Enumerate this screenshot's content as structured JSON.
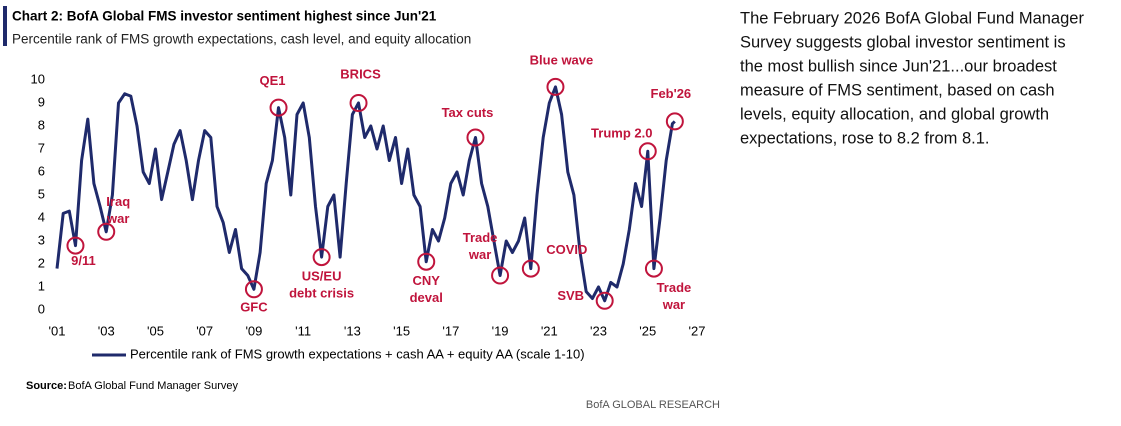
{
  "chart_data": {
    "type": "line",
    "title": "Chart 2: BofA Global FMS investor sentiment highest since Jun'21",
    "subtitle": "Percentile rank of FMS growth expectations, cash level, and equity allocation",
    "source_label": "Source:",
    "source": "BofA Global Fund Manager Survey",
    "brand": "BofA GLOBAL RESEARCH",
    "xlim": [
      2001,
      2027
    ],
    "ylim": [
      0,
      10
    ],
    "yticks": [
      0,
      1,
      2,
      3,
      4,
      5,
      6,
      7,
      8,
      9,
      10
    ],
    "xticks": [
      {
        "value": 2001,
        "label": "'01"
      },
      {
        "value": 2003,
        "label": "'03"
      },
      {
        "value": 2005,
        "label": "'05"
      },
      {
        "value": 2007,
        "label": "'07"
      },
      {
        "value": 2009,
        "label": "'09"
      },
      {
        "value": 2011,
        "label": "'11"
      },
      {
        "value": 2013,
        "label": "'13"
      },
      {
        "value": 2015,
        "label": "'15"
      },
      {
        "value": 2017,
        "label": "'17"
      },
      {
        "value": 2019,
        "label": "'19"
      },
      {
        "value": 2021,
        "label": "'21"
      },
      {
        "value": 2023,
        "label": "'23"
      },
      {
        "value": 2025,
        "label": "'25"
      },
      {
        "value": 2027,
        "label": "'27"
      }
    ],
    "grid": false,
    "legend": "bottom",
    "x": [
      2001.0,
      2001.25,
      2001.5,
      2001.75,
      2002.0,
      2002.25,
      2002.5,
      2002.75,
      2003.0,
      2003.25,
      2003.5,
      2003.75,
      2004.0,
      2004.25,
      2004.5,
      2004.75,
      2005.0,
      2005.25,
      2005.5,
      2005.75,
      2006.0,
      2006.25,
      2006.5,
      2006.75,
      2007.0,
      2007.25,
      2007.5,
      2007.75,
      2008.0,
      2008.25,
      2008.5,
      2008.75,
      2009.0,
      2009.25,
      2009.5,
      2009.75,
      2010.0,
      2010.25,
      2010.5,
      2010.75,
      2011.0,
      2011.25,
      2011.5,
      2011.75,
      2012.0,
      2012.25,
      2012.5,
      2012.75,
      2013.0,
      2013.25,
      2013.5,
      2013.75,
      2014.0,
      2014.25,
      2014.5,
      2014.75,
      2015.0,
      2015.25,
      2015.5,
      2015.75,
      2016.0,
      2016.25,
      2016.5,
      2016.75,
      2017.0,
      2017.25,
      2017.5,
      2017.75,
      2018.0,
      2018.25,
      2018.5,
      2018.75,
      2019.0,
      2019.25,
      2019.5,
      2019.75,
      2020.0,
      2020.25,
      2020.5,
      2020.75,
      2021.0,
      2021.25,
      2021.5,
      2021.75,
      2022.0,
      2022.25,
      2022.5,
      2022.75,
      2023.0,
      2023.25,
      2023.5,
      2023.75,
      2024.0,
      2024.25,
      2024.5,
      2024.75,
      2025.0,
      2025.25,
      2025.5,
      2025.75,
      2026.0,
      2026.1
    ],
    "series": [
      {
        "name": "Percentile rank of FMS growth expectations + cash AA + equity AA (scale 1-10)",
        "color": "#1f2a6b",
        "values": [
          1.8,
          4.2,
          4.3,
          2.8,
          6.5,
          8.3,
          5.5,
          4.5,
          3.4,
          5.0,
          9.0,
          9.4,
          9.3,
          8.0,
          6.0,
          5.5,
          7.0,
          4.8,
          6.0,
          7.2,
          7.8,
          6.5,
          4.8,
          6.5,
          7.8,
          7.5,
          4.5,
          3.8,
          2.5,
          3.5,
          1.8,
          1.5,
          0.9,
          2.5,
          5.5,
          6.5,
          8.8,
          7.5,
          5.0,
          8.5,
          9.0,
          7.5,
          4.5,
          2.3,
          4.5,
          5.0,
          2.3,
          5.5,
          8.5,
          9.0,
          7.5,
          8.0,
          7.0,
          8.0,
          6.5,
          7.5,
          5.5,
          7.0,
          5.0,
          4.5,
          2.1,
          3.5,
          3.0,
          4.0,
          5.5,
          6.0,
          5.0,
          6.5,
          7.5,
          5.5,
          4.5,
          3.0,
          1.5,
          3.0,
          2.5,
          3.0,
          4.0,
          1.8,
          5.0,
          7.5,
          9.0,
          9.7,
          8.5,
          6.0,
          5.0,
          2.5,
          0.8,
          0.5,
          1.0,
          0.4,
          1.2,
          1.0,
          2.0,
          3.5,
          5.5,
          4.5,
          6.9,
          1.8,
          4.0,
          6.5,
          8.1,
          8.2
        ]
      }
    ],
    "annotations": [
      {
        "lines": [
          "9/11"
        ],
        "x": 2001.75,
        "y": 2.8
      },
      {
        "lines": [
          "Iraq",
          "war"
        ],
        "x": 2003.0,
        "y": 3.4
      },
      {
        "lines": [
          "GFC"
        ],
        "x": 2009.0,
        "y": 0.9
      },
      {
        "lines": [
          "QE1"
        ],
        "x": 2010.0,
        "y": 8.8
      },
      {
        "lines": [
          "US/EU",
          "debt crisis"
        ],
        "x": 2011.75,
        "y": 2.3
      },
      {
        "lines": [
          "BRICS"
        ],
        "x": 2013.25,
        "y": 9.0
      },
      {
        "lines": [
          "CNY",
          "deval"
        ],
        "x": 2016.0,
        "y": 2.1
      },
      {
        "lines": [
          "Tax cuts"
        ],
        "x": 2018.0,
        "y": 7.5
      },
      {
        "lines": [
          "Trade",
          "war"
        ],
        "x": 2019.0,
        "y": 1.5
      },
      {
        "lines": [
          "COVID"
        ],
        "x": 2020.25,
        "y": 1.8
      },
      {
        "lines": [
          "Blue wave"
        ],
        "x": 2021.25,
        "y": 9.7
      },
      {
        "lines": [
          "SVB"
        ],
        "x": 2023.25,
        "y": 0.4
      },
      {
        "lines": [
          "Trump 2.0"
        ],
        "x": 2025.0,
        "y": 6.9
      },
      {
        "lines": [
          "Trade",
          "war"
        ],
        "x": 2025.25,
        "y": 1.8
      },
      {
        "lines": [
          "Feb'26"
        ],
        "x": 2026.1,
        "y": 8.2
      }
    ],
    "commentary": [
      "The February 2026 BofA Global Fund Manager",
      "Survey suggests global investor sentiment is",
      "the most bullish since Jun'21...our broadest",
      "measure of FMS sentiment, based on cash",
      "levels, equity allocation, and global growth",
      "expectations, rose to 8.2 from 8.1."
    ]
  }
}
